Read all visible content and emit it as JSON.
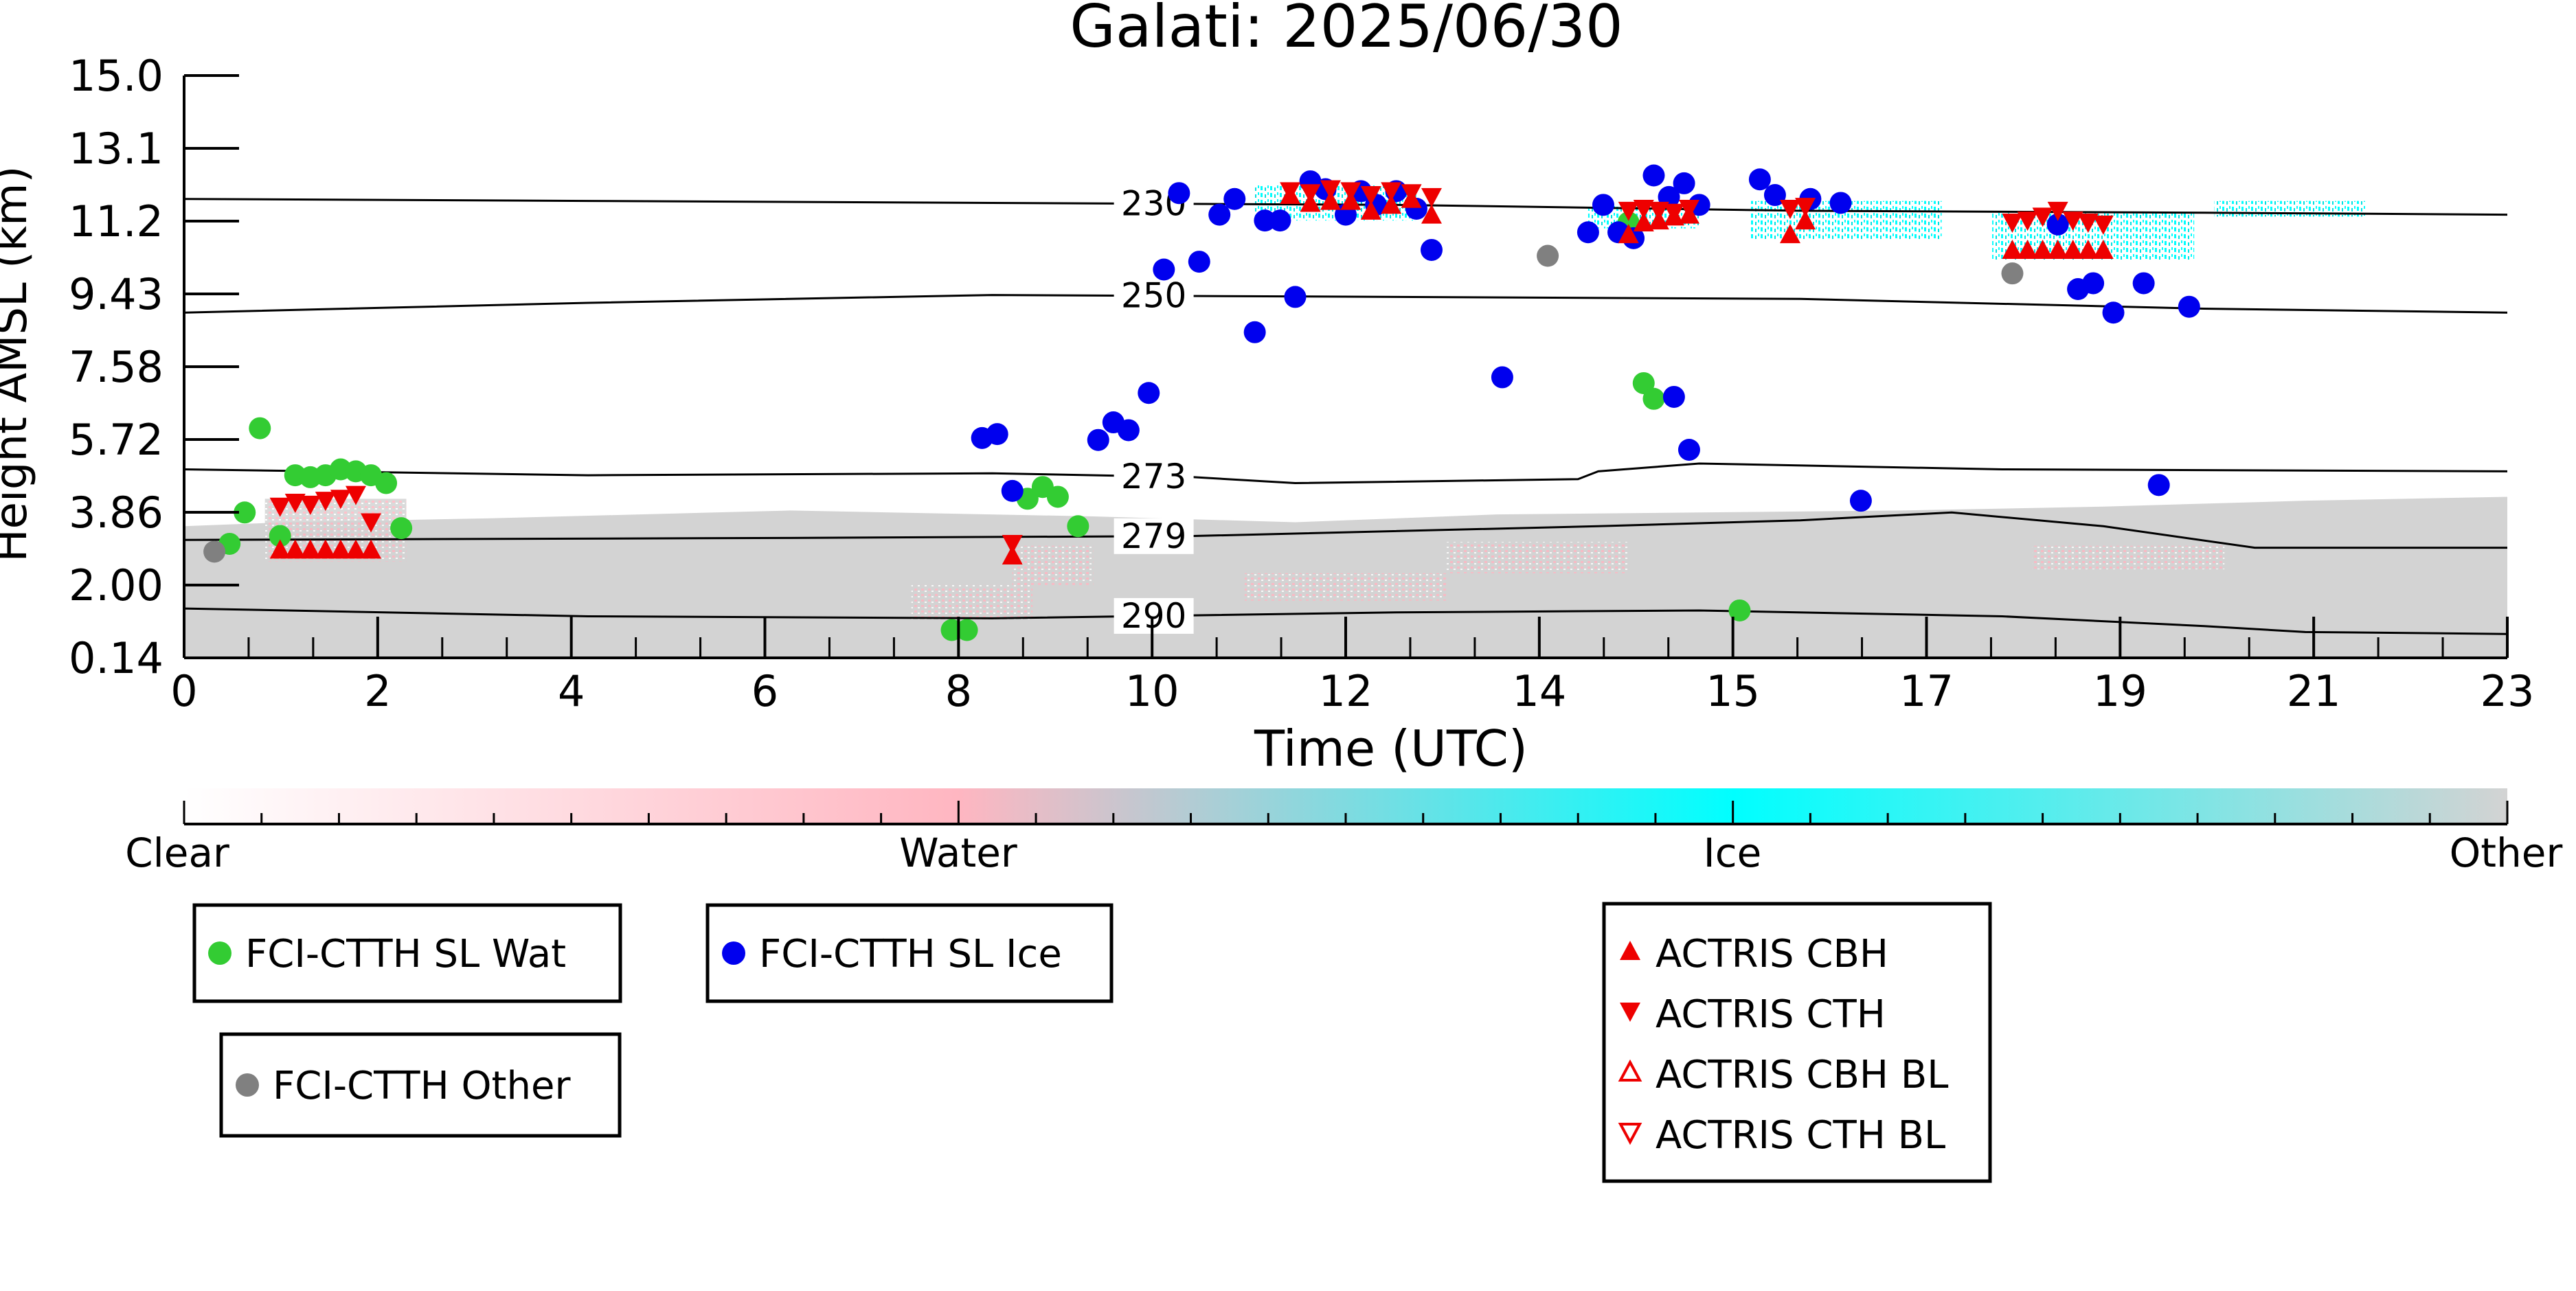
{
  "chart_data": {
    "type": "scatter",
    "title": "Galati: 2025/06/30",
    "xlabel": "Time (UTC)",
    "ylabel": "Height AMSL (km)",
    "xlim": [
      0,
      23
    ],
    "ylim": [
      0.14,
      15.0
    ],
    "x_ticks": [
      "0",
      "2",
      "4",
      "6",
      "8",
      "10",
      "12",
      "14",
      "15",
      "17",
      "19",
      "21",
      "23"
    ],
    "y_ticks": [
      "0.14",
      "2.00",
      "3.86",
      "5.72",
      "7.58",
      "9.43",
      "11.2",
      "13.1",
      "15.0"
    ],
    "colorbar": {
      "labels": [
        "Clear",
        "Water",
        "Ice",
        "Other"
      ],
      "colors": {
        "clear": "#ffffff",
        "water": "#ffb6c1",
        "ice": "#00ffff",
        "other": "#d3d3d3"
      }
    },
    "isotherms": [
      {
        "label": "230",
        "points": [
          [
            0,
            11.85
          ],
          [
            4,
            11.8
          ],
          [
            8,
            11.75
          ],
          [
            12,
            11.7
          ],
          [
            16,
            11.55
          ],
          [
            20,
            11.5
          ],
          [
            23,
            11.45
          ]
        ]
      },
      {
        "label": "250",
        "points": [
          [
            0,
            8.95
          ],
          [
            4,
            9.2
          ],
          [
            8,
            9.4
          ],
          [
            12,
            9.35
          ],
          [
            16,
            9.3
          ],
          [
            20,
            9.05
          ],
          [
            23,
            8.95
          ]
        ]
      },
      {
        "label": "273",
        "points": [
          [
            0,
            4.95
          ],
          [
            4,
            4.8
          ],
          [
            8,
            4.85
          ],
          [
            10,
            4.75
          ],
          [
            11,
            4.6
          ],
          [
            13.8,
            4.7
          ],
          [
            14,
            4.9
          ],
          [
            15,
            5.1
          ],
          [
            18,
            4.95
          ],
          [
            23,
            4.9
          ]
        ]
      },
      {
        "label": "279",
        "points": [
          [
            0,
            3.15
          ],
          [
            6,
            3.2
          ],
          [
            10,
            3.25
          ],
          [
            14,
            3.5
          ],
          [
            16,
            3.65
          ],
          [
            17.5,
            3.85
          ],
          [
            19,
            3.5
          ],
          [
            20.5,
            2.95
          ],
          [
            23,
            2.95
          ]
        ]
      },
      {
        "label": "290",
        "points": [
          [
            0,
            1.4
          ],
          [
            4,
            1.2
          ],
          [
            8,
            1.15
          ],
          [
            12,
            1.3
          ],
          [
            15,
            1.35
          ],
          [
            18,
            1.2
          ],
          [
            20,
            0.95
          ],
          [
            21,
            0.8
          ],
          [
            23,
            0.75
          ]
        ]
      }
    ],
    "series": [
      {
        "name": "FCI-CTTH SL Wat",
        "color": "#33cc33",
        "marker": "circle",
        "points": [
          [
            0.45,
            3.05
          ],
          [
            0.6,
            3.85
          ],
          [
            0.75,
            6.0
          ],
          [
            0.95,
            3.25
          ],
          [
            1.1,
            4.8
          ],
          [
            1.25,
            4.75
          ],
          [
            1.4,
            4.8
          ],
          [
            1.55,
            4.95
          ],
          [
            1.7,
            4.9
          ],
          [
            1.85,
            4.8
          ],
          [
            2.0,
            4.6
          ],
          [
            2.15,
            3.45
          ],
          [
            7.6,
            0.85
          ],
          [
            7.75,
            0.85
          ],
          [
            8.35,
            4.2
          ],
          [
            8.5,
            4.5
          ],
          [
            8.65,
            4.25
          ],
          [
            8.85,
            3.5
          ],
          [
            14.3,
            11.25
          ],
          [
            14.45,
            7.15
          ],
          [
            14.55,
            6.75
          ],
          [
            15.4,
            1.35
          ]
        ]
      },
      {
        "name": "FCI-CTTH SL Ice",
        "color": "#0000ee",
        "marker": "circle",
        "points": [
          [
            7.9,
            5.75
          ],
          [
            8.05,
            5.85
          ],
          [
            8.2,
            4.4
          ],
          [
            9.05,
            5.7
          ],
          [
            9.2,
            6.15
          ],
          [
            9.35,
            5.95
          ],
          [
            9.55,
            6.9
          ],
          [
            9.7,
            10.05
          ],
          [
            9.85,
            12.0
          ],
          [
            10.05,
            10.25
          ],
          [
            10.25,
            11.45
          ],
          [
            10.4,
            11.85
          ],
          [
            10.6,
            8.45
          ],
          [
            10.7,
            11.3
          ],
          [
            10.85,
            11.3
          ],
          [
            11.0,
            9.35
          ],
          [
            11.15,
            12.3
          ],
          [
            11.3,
            12.1
          ],
          [
            11.5,
            11.45
          ],
          [
            11.65,
            12.05
          ],
          [
            11.8,
            11.7
          ],
          [
            12.0,
            12.05
          ],
          [
            12.2,
            11.6
          ],
          [
            12.35,
            10.55
          ],
          [
            13.05,
            7.3
          ],
          [
            13.9,
            11.0
          ],
          [
            14.05,
            11.7
          ],
          [
            14.2,
            11.0
          ],
          [
            14.35,
            10.85
          ],
          [
            14.55,
            12.45
          ],
          [
            14.7,
            11.9
          ],
          [
            14.85,
            12.25
          ],
          [
            15.0,
            11.7
          ],
          [
            14.75,
            6.8
          ],
          [
            14.9,
            5.45
          ],
          [
            15.6,
            12.35
          ],
          [
            15.75,
            11.95
          ],
          [
            16.1,
            11.85
          ],
          [
            16.4,
            11.75
          ],
          [
            16.6,
            4.15
          ],
          [
            18.55,
            11.2
          ],
          [
            18.75,
            9.55
          ],
          [
            18.9,
            9.7
          ],
          [
            19.1,
            8.95
          ],
          [
            19.4,
            9.7
          ],
          [
            19.85,
            9.1
          ],
          [
            19.55,
            4.55
          ]
        ]
      },
      {
        "name": "FCI-CTTH Other",
        "color": "#808080",
        "marker": "circle",
        "points": [
          [
            0.3,
            2.85
          ],
          [
            13.5,
            10.4
          ],
          [
            18.1,
            9.95
          ]
        ]
      },
      {
        "name": "ACTRIS CBH",
        "color": "#ee0000",
        "marker": "triangle-up",
        "points": [
          [
            0.95,
            2.9
          ],
          [
            1.1,
            2.9
          ],
          [
            1.25,
            2.9
          ],
          [
            1.4,
            2.9
          ],
          [
            1.55,
            2.9
          ],
          [
            1.7,
            2.9
          ],
          [
            1.85,
            2.9
          ],
          [
            8.2,
            2.75
          ],
          [
            10.95,
            11.95
          ],
          [
            11.15,
            11.75
          ],
          [
            11.35,
            11.8
          ],
          [
            11.55,
            11.8
          ],
          [
            11.75,
            11.55
          ],
          [
            11.95,
            11.7
          ],
          [
            12.15,
            11.85
          ],
          [
            12.35,
            11.45
          ],
          [
            14.3,
            10.95
          ],
          [
            14.45,
            11.25
          ],
          [
            14.6,
            11.3
          ],
          [
            14.75,
            11.4
          ],
          [
            14.9,
            11.45
          ],
          [
            15.9,
            10.95
          ],
          [
            16.05,
            11.3
          ],
          [
            18.1,
            10.55
          ],
          [
            18.25,
            10.55
          ],
          [
            18.4,
            10.55
          ],
          [
            18.55,
            10.55
          ],
          [
            18.7,
            10.55
          ],
          [
            18.85,
            10.55
          ],
          [
            19.0,
            10.55
          ]
        ]
      },
      {
        "name": "ACTRIS CTH",
        "color": "#ee0000",
        "marker": "triangle-down",
        "points": [
          [
            0.95,
            4.0
          ],
          [
            1.1,
            4.1
          ],
          [
            1.25,
            4.05
          ],
          [
            1.4,
            4.15
          ],
          [
            1.55,
            4.2
          ],
          [
            1.7,
            4.3
          ],
          [
            1.85,
            3.6
          ],
          [
            8.2,
            3.05
          ],
          [
            10.95,
            12.05
          ],
          [
            11.15,
            12.0
          ],
          [
            11.35,
            12.1
          ],
          [
            11.55,
            12.05
          ],
          [
            11.75,
            11.95
          ],
          [
            11.95,
            12.05
          ],
          [
            12.15,
            12.0
          ],
          [
            12.35,
            11.9
          ],
          [
            14.3,
            11.55
          ],
          [
            14.45,
            11.6
          ],
          [
            14.6,
            11.55
          ],
          [
            14.75,
            11.5
          ],
          [
            14.9,
            11.6
          ],
          [
            15.9,
            11.6
          ],
          [
            16.05,
            11.65
          ],
          [
            18.1,
            11.25
          ],
          [
            18.25,
            11.3
          ],
          [
            18.4,
            11.4
          ],
          [
            18.55,
            11.55
          ],
          [
            18.7,
            11.3
          ],
          [
            18.85,
            11.25
          ],
          [
            19.0,
            11.2
          ]
        ]
      },
      {
        "name": "ACTRIS CBH BL",
        "color": "#ee0000",
        "marker": "triangle-up-open",
        "points": []
      },
      {
        "name": "ACTRIS CTH BL",
        "color": "#ee0000",
        "marker": "triangle-down-open",
        "points": []
      }
    ],
    "legend": {
      "boxes": [
        [
          "FCI-CTTH SL Wat"
        ],
        [
          "FCI-CTTH SL Ice"
        ],
        [
          "FCI-CTTH Other"
        ],
        [
          "ACTRIS CBH",
          "ACTRIS CTH",
          "ACTRIS CBH BL",
          "ACTRIS CTH BL"
        ]
      ]
    },
    "grid": false
  }
}
